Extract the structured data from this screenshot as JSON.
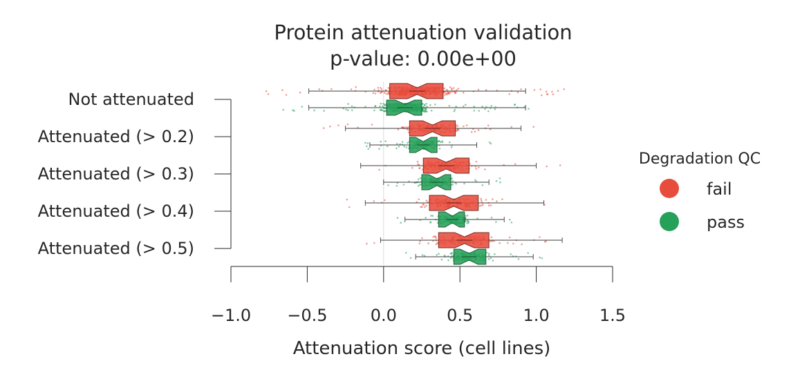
{
  "chart_data": {
    "type": "box",
    "title": "Protein attenuation validation",
    "subtitle": "p-value: 0.00e+00",
    "xlabel": "Attenuation score (cell lines)",
    "xlim": [
      -1.0,
      1.5
    ],
    "xticks": [
      "−1.0",
      "−0.5",
      "0.0",
      "0.5",
      "1.0",
      "1.5"
    ],
    "xtick_values": [
      -1.0,
      -0.5,
      0.0,
      0.5,
      1.0,
      1.5
    ],
    "categories": [
      "Not attenuated",
      "Attenuated (> 0.2)",
      "Attenuated (> 0.3)",
      "Attenuated (> 0.4)",
      "Attenuated (> 0.5)"
    ],
    "legend": {
      "title": "Degradation QC",
      "position": "right",
      "entries": [
        {
          "label": "fail",
          "color": "#e74c3c"
        },
        {
          "label": "pass",
          "color": "#27a05a"
        }
      ]
    },
    "series": [
      {
        "name": "fail",
        "color": "#e74c3c",
        "boxes": [
          {
            "whisker_low": -0.49,
            "q1": 0.04,
            "median": 0.22,
            "q3": 0.39,
            "whisker_high": 0.93,
            "jitter_min": -0.78,
            "jitter_max": 1.2
          },
          {
            "whisker_low": -0.25,
            "q1": 0.17,
            "median": 0.32,
            "q3": 0.47,
            "whisker_high": 0.9,
            "jitter_min": -0.42,
            "jitter_max": 1.08
          },
          {
            "whisker_low": -0.15,
            "q1": 0.26,
            "median": 0.41,
            "q3": 0.56,
            "whisker_high": 1.0,
            "jitter_min": -0.2,
            "jitter_max": 1.35
          },
          {
            "whisker_low": -0.12,
            "q1": 0.3,
            "median": 0.46,
            "q3": 0.62,
            "whisker_high": 1.05,
            "jitter_min": -0.26,
            "jitter_max": 1.17
          },
          {
            "whisker_low": -0.02,
            "q1": 0.36,
            "median": 0.53,
            "q3": 0.69,
            "whisker_high": 1.17,
            "jitter_min": -0.17,
            "jitter_max": 1.1
          }
        ]
      },
      {
        "name": "pass",
        "color": "#27a05a",
        "boxes": [
          {
            "whisker_low": -0.49,
            "q1": 0.02,
            "median": 0.14,
            "q3": 0.25,
            "whisker_high": 0.93,
            "jitter_min": -0.72,
            "jitter_max": 1.03
          },
          {
            "whisker_low": -0.09,
            "q1": 0.17,
            "median": 0.26,
            "q3": 0.35,
            "whisker_high": 0.61,
            "jitter_min": -0.13,
            "jitter_max": 0.73
          },
          {
            "whisker_low": 0.0,
            "q1": 0.25,
            "median": 0.35,
            "q3": 0.44,
            "whisker_high": 0.69,
            "jitter_min": -0.05,
            "jitter_max": 0.79
          },
          {
            "whisker_low": 0.14,
            "q1": 0.36,
            "median": 0.45,
            "q3": 0.53,
            "whisker_high": 0.79,
            "jitter_min": 0.09,
            "jitter_max": 0.88
          },
          {
            "whisker_low": 0.21,
            "q1": 0.46,
            "median": 0.56,
            "q3": 0.67,
            "whisker_high": 0.98,
            "jitter_min": 0.12,
            "jitter_max": 1.04
          }
        ]
      }
    ]
  }
}
